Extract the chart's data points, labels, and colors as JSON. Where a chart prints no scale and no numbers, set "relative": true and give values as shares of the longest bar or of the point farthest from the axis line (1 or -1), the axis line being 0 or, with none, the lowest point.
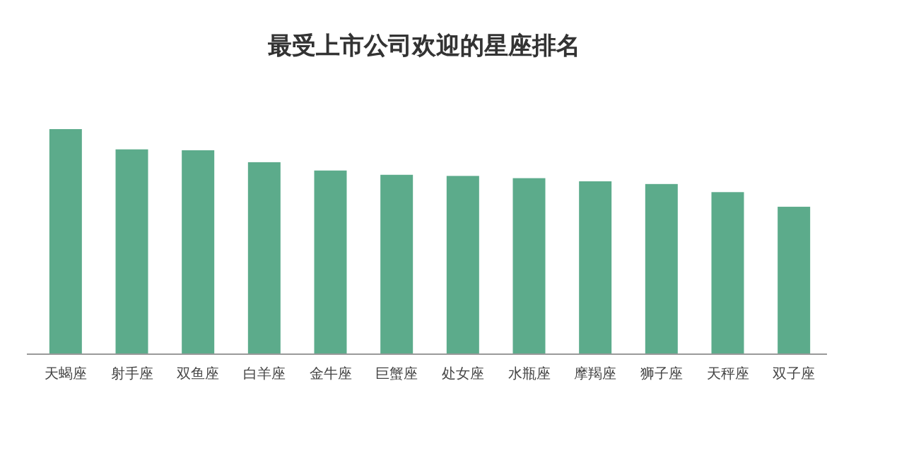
{
  "chart_data": {
    "type": "bar",
    "title": "最受上市公司欢迎的星座排名",
    "categories": [
      "天蝎座",
      "射手座",
      "双鱼座",
      "白羊座",
      "金牛座",
      "巨蟹座",
      "处女座",
      "水瓶座",
      "摩羯座",
      "狮子座",
      "天秤座",
      "双子座"
    ],
    "values": [
      1,
      0.91,
      0.906,
      0.853,
      0.816,
      0.797,
      0.792,
      0.782,
      0.768,
      0.756,
      0.72,
      0.655
    ],
    "color": "#5cab8b",
    "relative": true
  }
}
